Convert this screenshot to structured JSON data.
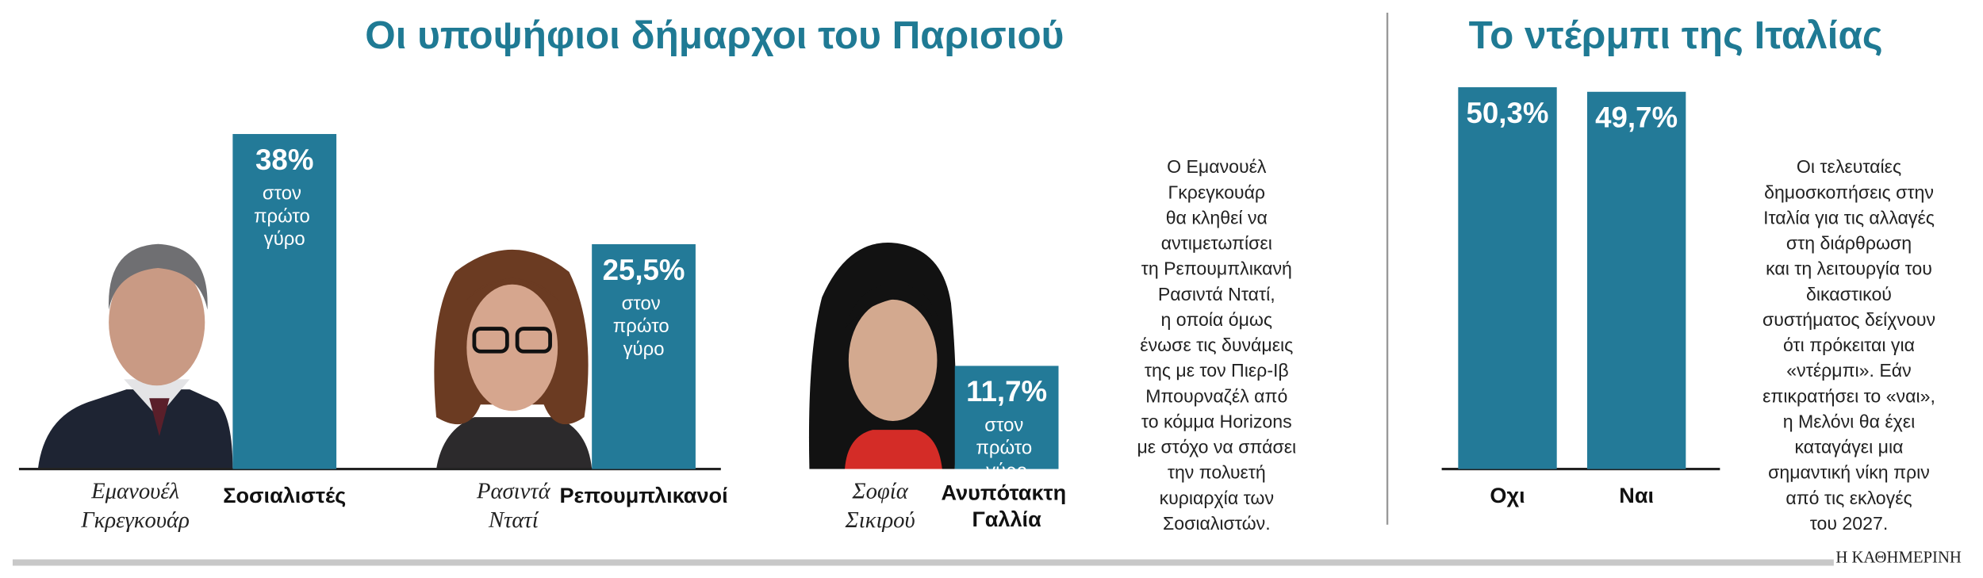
{
  "chart_data": [
    {
      "type": "bar",
      "title": "Οι υποψήφιοι δήμαρχοι του Παρισιού",
      "categories": [
        "Σοσιαλιστές",
        "Ρεπουμπλικανοί",
        "Ανυπότακτη Γαλλία"
      ],
      "values": [
        38,
        25.5,
        11.7
      ],
      "value_labels": [
        "38%",
        "25,5%",
        "11,7%"
      ],
      "value_sublabel": "στον πρώτο γύρο",
      "candidates": [
        [
          "Εμανουέλ",
          "Γκρεγκουάρ"
        ],
        [
          "Ρασιντά",
          "Ντατί"
        ],
        [
          "Σοφία",
          "Σικιρού"
        ]
      ],
      "color": "#237a98",
      "note": [
        "Ο Εμανουέλ",
        "Γκρεγκουάρ",
        "θα κληθεί να",
        "αντιμετωπίσει",
        "τη Ρεπουμπλικανή",
        "Ρασιντά Ντατί,",
        "η οποία όμως",
        "ένωσε τις δυνάμεις",
        "της με τον Πιερ-Ιβ",
        "Μπουρναζέλ από",
        "το κόμμα Horizons",
        "με στόχο να σπάσει",
        "την πολυετή",
        "κυριαρχία των",
        "Σοσιαλιστών."
      ]
    },
    {
      "type": "bar",
      "title": "Το ντέρμπι της Ιταλίας",
      "categories": [
        "Οχι",
        "Ναι"
      ],
      "values": [
        50.3,
        49.7
      ],
      "value_labels": [
        "50,3%",
        "49,7%"
      ],
      "color": "#237a98",
      "note": [
        "Οι τελευταίες",
        "δημοσκοπήσεις στην",
        "Ιταλία για τις αλλαγές",
        "στη διάρθρωση",
        "και τη λειτουργία του",
        "δικαστικού",
        "συστήματος δείχνουν",
        "ότι πρόκειται για",
        "«ντέρμπι». Εάν",
        "επικρατήσει το «ναι»,",
        "η Μελόνι θα έχει",
        "καταγάγει μια",
        "σημαντική νίκη πριν",
        "από τις εκλογές",
        "του 2027."
      ]
    }
  ],
  "footer": "Η ΚΑΘΗΜΕΡΙΝΗ"
}
